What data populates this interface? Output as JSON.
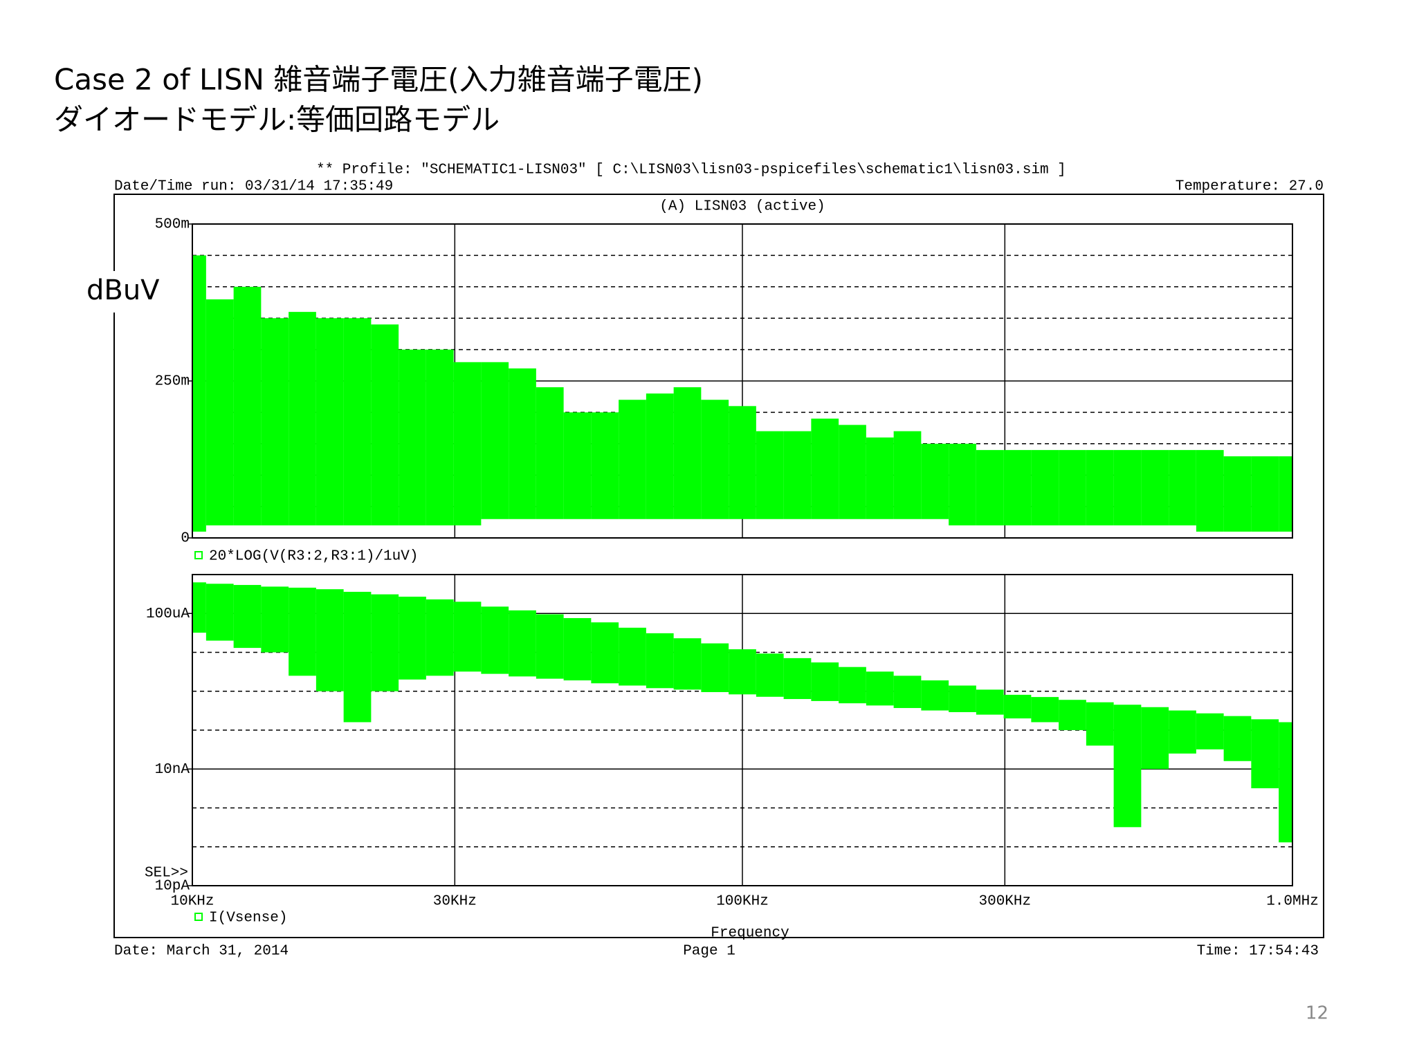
{
  "title": [
    "Case 2 of LISN   雑音端子電圧(入力雑音端子電圧)",
    "ダイオードモデル:等価回路モデル"
  ],
  "annotation": "dBuV",
  "page_number": "12",
  "plot": {
    "profile": "** Profile: \"SCHEMATIC1-LISN03\"  [ C:\\LISN03\\lisn03-pspicefiles\\schematic1\\lisn03.sim ]",
    "run": "Date/Time run: 03/31/14 17:35:49",
    "temperature": "Temperature: 27.0",
    "section": "(A) LISN03 (active)",
    "selector": "SEL>>",
    "date": "Date: March 31, 2014",
    "page": "Page 1",
    "time": "Time: 17:54:43"
  },
  "chart_data": [
    {
      "type": "area",
      "xlog": true,
      "ylog": false,
      "grid": true,
      "x": [
        10000,
        11220,
        12589,
        14125,
        15849,
        17783,
        19953,
        22387,
        25119,
        28184,
        31623,
        35481,
        39811,
        44668,
        50119,
        56234,
        63096,
        70795,
        79433,
        89125,
        100000,
        112202,
        125893,
        141254,
        158489,
        177828,
        199526,
        223872,
        251189,
        281838,
        316228,
        354813,
        398107,
        446684,
        501187,
        562341,
        630957,
        707946,
        794328,
        891251,
        1000000
      ],
      "xlim": [
        10000,
        1000000
      ],
      "xticks": [
        10000,
        30000,
        100000,
        300000,
        1000000
      ],
      "ylim": [
        0,
        0.5
      ],
      "yticks": [
        0,
        {
          "value": 0.25,
          "label": "250m"
        },
        {
          "value": 0.5,
          "label": "500m"
        }
      ],
      "yminor": [
        0.05,
        0.1,
        0.15,
        0.2,
        0.3,
        0.35,
        0.4,
        0.45
      ],
      "series": [
        {
          "name": "20*LOG(V(R3:2,R3:1)/1uV)",
          "color": "#00ff00",
          "values": [
            0.45,
            0.38,
            0.4,
            0.35,
            0.36,
            0.35,
            0.35,
            0.34,
            0.3,
            0.3,
            0.28,
            0.28,
            0.27,
            0.24,
            0.2,
            0.2,
            0.22,
            0.23,
            0.24,
            0.22,
            0.21,
            0.17,
            0.17,
            0.19,
            0.18,
            0.16,
            0.17,
            0.15,
            0.15,
            0.14,
            0.14,
            0.14,
            0.14,
            0.14,
            0.14,
            0.14,
            0.14,
            0.14,
            0.13,
            0.13,
            0.13
          ],
          "lower": [
            0.01,
            0.02,
            0.02,
            0.02,
            0.02,
            0.02,
            0.02,
            0.02,
            0.02,
            0.02,
            0.02,
            0.03,
            0.03,
            0.03,
            0.03,
            0.03,
            0.03,
            0.03,
            0.03,
            0.03,
            0.03,
            0.03,
            0.03,
            0.03,
            0.03,
            0.03,
            0.03,
            0.03,
            0.02,
            0.02,
            0.02,
            0.02,
            0.02,
            0.02,
            0.02,
            0.02,
            0.02,
            0.01,
            0.01,
            0.01,
            0.01
          ]
        }
      ]
    },
    {
      "type": "area",
      "xlog": true,
      "ylog": true,
      "grid": true,
      "x": [
        10000,
        11220,
        12589,
        14125,
        15849,
        17783,
        19953,
        22387,
        25119,
        28184,
        31623,
        35481,
        39811,
        44668,
        50119,
        56234,
        63096,
        70795,
        79433,
        89125,
        100000,
        112202,
        125893,
        141254,
        158489,
        177828,
        199526,
        223872,
        251189,
        281838,
        316228,
        354813,
        398107,
        446684,
        501187,
        562341,
        630957,
        707946,
        794328,
        891251,
        1000000
      ],
      "xlim": [
        10000,
        1000000
      ],
      "xticks": [
        {
          "value": 10000,
          "label": "10KHz"
        },
        {
          "value": 30000,
          "label": "30KHz"
        },
        {
          "value": 100000,
          "label": "100KHz"
        },
        {
          "value": 300000,
          "label": "300KHz"
        },
        {
          "value": 1000000,
          "label": "1.0MHz"
        }
      ],
      "x_label": "Frequency",
      "ylim": [
        1e-11,
        0.001
      ],
      "yticks": [
        {
          "value": 1e-11,
          "label": "10pA"
        },
        {
          "value": 1e-08,
          "label": "10nA"
        },
        {
          "value": 0.0001,
          "label": "100uA"
        }
      ],
      "yminor": [
        1e-10,
        1e-09,
        1e-07,
        1e-06,
        1e-05
      ],
      "series": [
        {
          "name": "I(Vsense)",
          "color": "#00ff00",
          "values": [
            0.00063,
            0.00058,
            0.00054,
            0.00049,
            0.00046,
            0.00042,
            0.00036,
            0.00031,
            0.00027,
            0.00023,
            0.0002,
            0.00015,
            0.00012,
            9.5e-05,
            7.6e-05,
            5.9e-05,
            4.3e-05,
            3.1e-05,
            2.3e-05,
            1.7e-05,
            1.2e-05,
            9.3e-06,
            7.1e-06,
            5.5e-06,
            4.2e-06,
            3.2e-06,
            2.5e-06,
            1.9e-06,
            1.4e-06,
            1.1e-06,
            8.1e-07,
            7.1e-07,
            6e-07,
            5.2e-07,
            4.5e-07,
            3.9e-07,
            3.2e-07,
            2.7e-07,
            2.3e-07,
            1.9e-07,
            1.6e-07
          ],
          "lower": [
            3.2e-05,
            2e-05,
            1.3e-05,
            1e-05,
            2.5e-06,
            1e-06,
            1.6e-07,
            1e-06,
            2e-06,
            2.5e-06,
            3.2e-06,
            2.8e-06,
            2.4e-06,
            2.1e-06,
            1.9e-06,
            1.6e-06,
            1.4e-06,
            1.2e-06,
            1.1e-06,
            9.5e-07,
            8.3e-07,
            7.2e-07,
            6.3e-07,
            5.6e-07,
            4.9e-07,
            4.3e-07,
            3.7e-07,
            3.2e-07,
            2.9e-07,
            2.5e-07,
            2e-07,
            1.6e-07,
            1e-07,
            4e-08,
            3.2e-10,
            1e-08,
            2.5e-08,
            3.2e-08,
            1.6e-08,
            3.2e-09,
            1.3e-10
          ]
        }
      ]
    }
  ]
}
